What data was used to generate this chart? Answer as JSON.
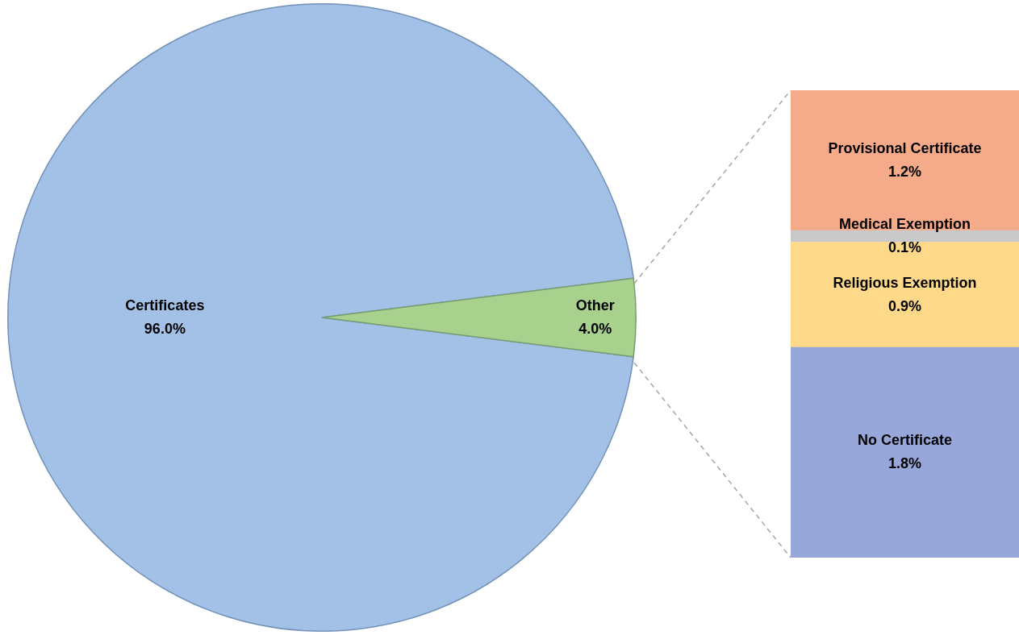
{
  "chart_data": [
    {
      "type": "pie",
      "categories": [
        "Certificates",
        "Other"
      ],
      "values": [
        96.0,
        4.0
      ],
      "colors": [
        "#a3c1e6",
        "#a9d18e"
      ],
      "value_labels": [
        "96.0%",
        "4.0%"
      ],
      "legend": false
    },
    {
      "type": "bar",
      "stacked": true,
      "categories": [
        null
      ],
      "legend": false,
      "series": [
        {
          "name": "No Certificate",
          "color": "#97a7da",
          "values": [
            1.8
          ],
          "value_labels": [
            "1.8%"
          ]
        },
        {
          "name": "Religious Exemption",
          "color": "#fed98a",
          "values": [
            0.9
          ],
          "value_labels": [
            "0.9%"
          ]
        },
        {
          "name": "Medical Exemption",
          "color": "#c9c9c9",
          "values": [
            0.1
          ],
          "value_labels": [
            "0.1%"
          ]
        },
        {
          "name": "Provisional Certificate",
          "color": "#f5ab8a",
          "values": [
            1.2
          ],
          "value_labels": [
            "1.2%"
          ]
        }
      ]
    }
  ]
}
